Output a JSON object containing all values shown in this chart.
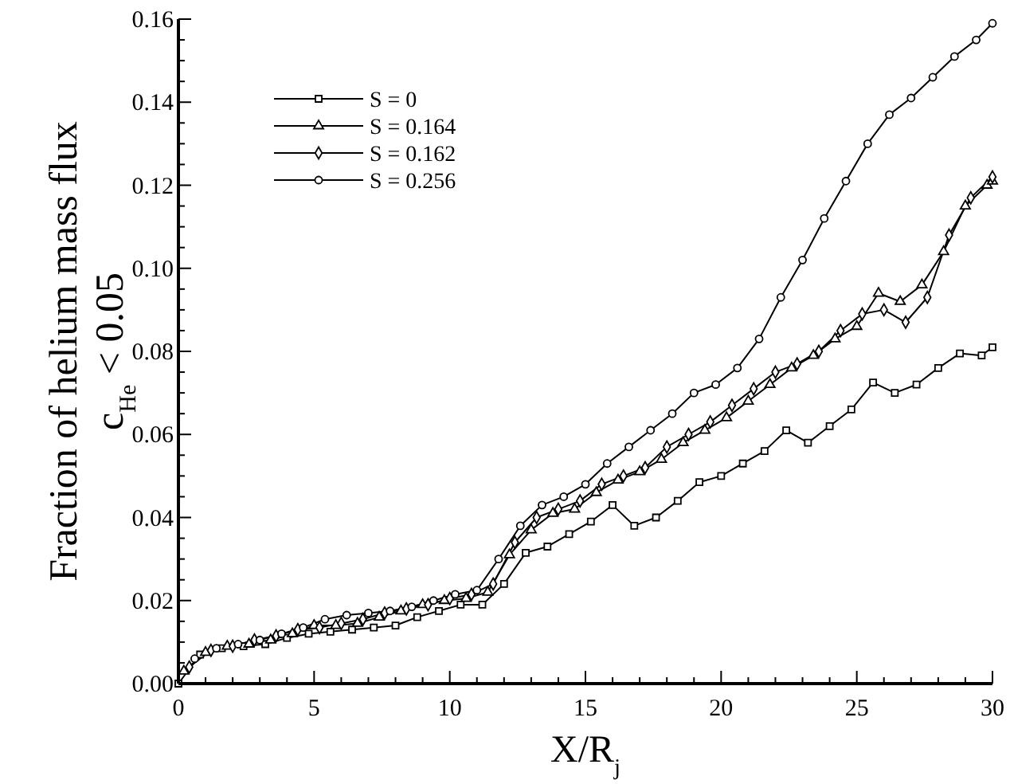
{
  "chart_data": {
    "type": "line",
    "xlabel": "X/R$_{j}$",
    "ylabel": "Fraction of helium mass flux\nc$_{He}$ < 0.05",
    "x": [
      0,
      0.8,
      1.6,
      2.4,
      3.2,
      4.0,
      4.8,
      5.6,
      6.4,
      7.2,
      8.0,
      8.8,
      9.6,
      10.4,
      11.2,
      12.0,
      12.8,
      13.6,
      14.4,
      15.2,
      16.0,
      16.8,
      17.6,
      18.4,
      19.2,
      20.0,
      20.8,
      21.6,
      22.4,
      23.2,
      24.0,
      24.8,
      25.6,
      26.4,
      27.2,
      28.0,
      28.8,
      29.6,
      30
    ],
    "series": [
      {
        "name": "S = 0",
        "color": "#000000",
        "marker": "square",
        "values": [
          0,
          0.007,
          0.0085,
          0.009,
          0.0095,
          0.011,
          0.012,
          0.0125,
          0.013,
          0.0135,
          0.014,
          0.016,
          0.0175,
          0.019,
          0.019,
          0.024,
          0.0315,
          0.033,
          0.036,
          0.039,
          0.043,
          0.038,
          0.04,
          0.044,
          0.0485,
          0.05,
          0.053,
          0.056,
          0.061,
          0.058,
          0.062,
          0.066,
          0.0725,
          0.07,
          0.072,
          0.076,
          0.0795,
          0.079,
          0.081
        ]
      },
      {
        "name": "S = 0.164",
        "color": "#000000",
        "marker": "triangle",
        "x": [
          0.2,
          1.0,
          1.8,
          2.6,
          3.4,
          4.2,
          5.0,
          5.8,
          6.6,
          7.4,
          8.2,
          9.0,
          9.8,
          10.6,
          11.4,
          12.2,
          13.0,
          13.8,
          14.6,
          15.4,
          16.2,
          17.0,
          17.8,
          18.6,
          19.4,
          20.2,
          21.0,
          21.8,
          22.6,
          23.4,
          24.2,
          25.0,
          25.8,
          26.6,
          27.4,
          28.2,
          29.0,
          29.8,
          30
        ],
        "values": [
          0.003,
          0.0075,
          0.009,
          0.0095,
          0.0105,
          0.012,
          0.014,
          0.014,
          0.0145,
          0.016,
          0.0175,
          0.019,
          0.02,
          0.0205,
          0.022,
          0.031,
          0.037,
          0.041,
          0.042,
          0.046,
          0.049,
          0.051,
          0.054,
          0.058,
          0.061,
          0.064,
          0.068,
          0.072,
          0.076,
          0.079,
          0.083,
          0.086,
          0.094,
          0.092,
          0.096,
          0.104,
          0.115,
          0.12,
          0.121
        ]
      },
      {
        "name": "S = 0.162",
        "color": "#000000",
        "marker": "diamond",
        "x": [
          0.4,
          1.2,
          2.0,
          2.8,
          3.6,
          4.4,
          5.2,
          6.0,
          6.8,
          7.6,
          8.4,
          9.2,
          10.0,
          10.8,
          11.6,
          12.4,
          13.2,
          14.0,
          14.8,
          15.6,
          16.4,
          17.2,
          18.0,
          18.8,
          19.6,
          20.4,
          21.2,
          22.0,
          22.8,
          23.6,
          24.4,
          25.2,
          26.0,
          26.8,
          27.6,
          28.4,
          29.2,
          30
        ],
        "values": [
          0.004,
          0.008,
          0.009,
          0.0105,
          0.0115,
          0.013,
          0.0135,
          0.0145,
          0.0155,
          0.017,
          0.018,
          0.019,
          0.0205,
          0.0215,
          0.024,
          0.034,
          0.04,
          0.042,
          0.044,
          0.048,
          0.05,
          0.052,
          0.057,
          0.06,
          0.063,
          0.067,
          0.071,
          0.075,
          0.077,
          0.08,
          0.085,
          0.089,
          0.09,
          0.087,
          0.093,
          0.108,
          0.117,
          0.122
        ]
      },
      {
        "name": "S = 0.256",
        "color": "#000000",
        "marker": "circle",
        "x": [
          0.6,
          1.4,
          2.2,
          3.0,
          3.8,
          4.6,
          5.4,
          6.2,
          7.0,
          7.8,
          8.6,
          9.4,
          10.2,
          11.0,
          11.8,
          12.6,
          13.4,
          14.2,
          15.0,
          15.8,
          16.6,
          17.4,
          18.2,
          19.0,
          19.8,
          20.6,
          21.4,
          22.2,
          23.0,
          23.8,
          24.6,
          25.4,
          26.2,
          27.0,
          27.8,
          28.6,
          29.4,
          30
        ],
        "values": [
          0.006,
          0.0085,
          0.0095,
          0.0105,
          0.012,
          0.0135,
          0.0155,
          0.0165,
          0.017,
          0.0175,
          0.0185,
          0.02,
          0.0215,
          0.0225,
          0.03,
          0.038,
          0.043,
          0.045,
          0.048,
          0.053,
          0.057,
          0.061,
          0.065,
          0.07,
          0.072,
          0.076,
          0.083,
          0.093,
          0.102,
          0.112,
          0.121,
          0.13,
          0.137,
          0.141,
          0.146,
          0.151,
          0.155,
          0.159
        ]
      }
    ],
    "xlim": [
      0,
      30
    ],
    "ylim": [
      0,
      0.16
    ],
    "xticks": [
      0,
      {
        "value": 1,
        "label": null
      },
      {
        "value": 2,
        "label": null
      },
      {
        "value": 3,
        "label": null
      },
      {
        "value": 4,
        "label": null
      },
      5,
      {
        "value": 6,
        "label": null
      },
      {
        "value": 7,
        "label": null
      },
      {
        "value": 8,
        "label": null
      },
      {
        "value": 9,
        "label": null
      },
      10,
      {
        "value": 11,
        "label": null
      },
      {
        "value": 12,
        "label": null
      },
      {
        "value": 13,
        "label": null
      },
      {
        "value": 14,
        "label": null
      },
      15,
      {
        "value": 16,
        "label": null
      },
      {
        "value": 17,
        "label": null
      },
      {
        "value": 18,
        "label": null
      },
      {
        "value": 19,
        "label": null
      },
      20,
      {
        "value": 21,
        "label": null
      },
      {
        "value": 22,
        "label": null
      },
      {
        "value": 23,
        "label": null
      },
      {
        "value": 24,
        "label": null
      },
      25,
      {
        "value": 26,
        "label": null
      },
      {
        "value": 27,
        "label": null
      },
      {
        "value": 28,
        "label": null
      },
      {
        "value": 29,
        "label": null
      },
      30
    ],
    "yticks": [
      {
        "value": 0,
        "label": "0.00"
      },
      {
        "value": 0.005,
        "label": null
      },
      {
        "value": 0.01,
        "label": null
      },
      {
        "value": 0.015,
        "label": null
      },
      {
        "value": 0.02,
        "label": "0.02"
      },
      {
        "value": 0.025,
        "label": null
      },
      {
        "value": 0.03,
        "label": null
      },
      {
        "value": 0.035,
        "label": null
      },
      {
        "value": 0.04,
        "label": "0.04"
      },
      {
        "value": 0.045,
        "label": null
      },
      {
        "value": 0.05,
        "label": null
      },
      {
        "value": 0.055,
        "label": null
      },
      {
        "value": 0.06,
        "label": "0.06"
      },
      {
        "value": 0.065,
        "label": null
      },
      {
        "value": 0.07,
        "label": null
      },
      {
        "value": 0.075,
        "label": null
      },
      {
        "value": 0.08,
        "label": "0.08"
      },
      {
        "value": 0.085,
        "label": null
      },
      {
        "value": 0.09,
        "label": null
      },
      {
        "value": 0.095,
        "label": null
      },
      {
        "value": 0.1,
        "label": "0.10"
      },
      {
        "value": 0.105,
        "label": null
      },
      {
        "value": 0.11,
        "label": null
      },
      {
        "value": 0.115,
        "label": null
      },
      {
        "value": 0.12,
        "label": "0.12"
      },
      {
        "value": 0.125,
        "label": null
      },
      {
        "value": 0.13,
        "label": null
      },
      {
        "value": 0.135,
        "label": null
      },
      {
        "value": 0.14,
        "label": "0.14"
      },
      {
        "value": 0.145,
        "label": null
      },
      {
        "value": 0.15,
        "label": null
      },
      {
        "value": 0.155,
        "label": null
      },
      {
        "value": 0.16,
        "label": "0.16"
      }
    ],
    "legend": "top left",
    "grid": false,
    "line_style": "solid"
  }
}
